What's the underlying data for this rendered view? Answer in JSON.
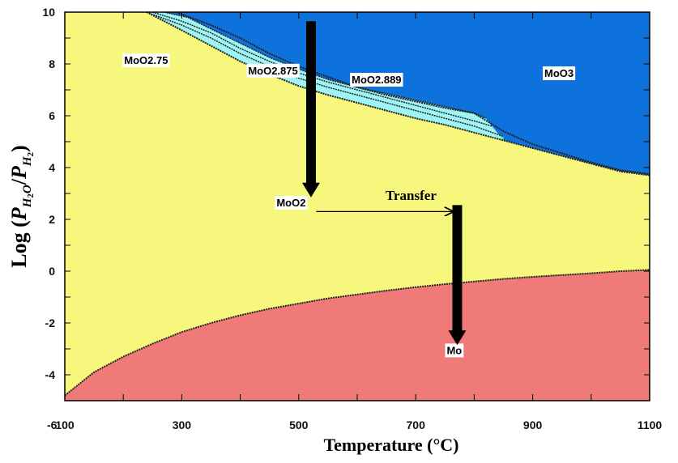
{
  "chart_data": {
    "type": "area",
    "title": "",
    "xlabel": "Temperature (°C)",
    "ylabel_prefix": "Log (",
    "ylabel_num_sub": "H",
    "ylabel_num_sub2": "2",
    "ylabel_num_sub3": "O",
    "ylabel_den_sub": "H",
    "ylabel_den_sub2": "2",
    "ylabel_suffix": ")",
    "ylabel_p": "P",
    "ylabel_slash": "/",
    "xlim": [
      100,
      1100
    ],
    "ylim": [
      -5,
      10
    ],
    "x_ticks": [
      {
        "value": 100,
        "label": "100"
      },
      {
        "value": 300,
        "label": "300"
      },
      {
        "value": 500,
        "label": "500"
      },
      {
        "value": 700,
        "label": "700"
      },
      {
        "value": 900,
        "label": "900"
      },
      {
        "value": 1100,
        "label": "1100"
      }
    ],
    "y_ticks": [
      {
        "value": 10,
        "label": "10"
      },
      {
        "value": 8,
        "label": "8"
      },
      {
        "value": 6,
        "label": "6"
      },
      {
        "value": 4,
        "label": "4"
      },
      {
        "value": 2,
        "label": "2"
      },
      {
        "value": 0,
        "label": "0"
      },
      {
        "value": -2,
        "label": "-2"
      },
      {
        "value": -4,
        "label": "-4"
      }
    ],
    "corner_label": "-6",
    "boundaries": {
      "mo_moo2": [
        [
          100,
          -4.8
        ],
        [
          150,
          -3.9
        ],
        [
          200,
          -3.3
        ],
        [
          250,
          -2.8
        ],
        [
          300,
          -2.35
        ],
        [
          350,
          -2.0
        ],
        [
          400,
          -1.7
        ],
        [
          450,
          -1.45
        ],
        [
          500,
          -1.25
        ],
        [
          550,
          -1.05
        ],
        [
          600,
          -0.9
        ],
        [
          650,
          -0.75
        ],
        [
          700,
          -0.62
        ],
        [
          750,
          -0.5
        ],
        [
          800,
          -0.4
        ],
        [
          850,
          -0.3
        ],
        [
          900,
          -0.22
        ],
        [
          950,
          -0.15
        ],
        [
          1000,
          -0.08
        ],
        [
          1050,
          0.0
        ],
        [
          1100,
          0.05
        ]
      ],
      "moo2_upper": [
        [
          100,
          10
        ],
        [
          240,
          10
        ],
        [
          300,
          9.3
        ],
        [
          350,
          8.7
        ],
        [
          400,
          8.1
        ],
        [
          450,
          7.6
        ],
        [
          500,
          7.15
        ],
        [
          550,
          6.8
        ],
        [
          600,
          6.5
        ],
        [
          650,
          6.2
        ],
        [
          700,
          5.9
        ],
        [
          750,
          5.65
        ],
        [
          800,
          5.35
        ],
        [
          850,
          5.05
        ],
        [
          900,
          4.75
        ],
        [
          950,
          4.45
        ],
        [
          1000,
          4.15
        ],
        [
          1050,
          3.85
        ],
        [
          1100,
          3.7
        ]
      ],
      "moo3_lower": [
        [
          290,
          10
        ],
        [
          350,
          9.5
        ],
        [
          400,
          9.0
        ],
        [
          450,
          8.4
        ],
        [
          500,
          7.9
        ],
        [
          550,
          7.5
        ],
        [
          600,
          7.1
        ],
        [
          650,
          6.8
        ],
        [
          700,
          6.55
        ],
        [
          750,
          6.3
        ],
        [
          800,
          6.1
        ],
        [
          850,
          5.4
        ],
        [
          900,
          4.9
        ],
        [
          950,
          4.55
        ],
        [
          1000,
          4.2
        ],
        [
          1050,
          3.9
        ],
        [
          1100,
          3.75
        ]
      ],
      "band_moo275_upper": [
        [
          240,
          10
        ],
        [
          300,
          9.5
        ],
        [
          350,
          9.0
        ],
        [
          400,
          8.4
        ],
        [
          450,
          7.9
        ],
        [
          500,
          7.45
        ],
        [
          550,
          7.1
        ],
        [
          600,
          6.8
        ],
        [
          650,
          6.5
        ],
        [
          700,
          6.2
        ],
        [
          750,
          5.9
        ],
        [
          800,
          5.6
        ],
        [
          850,
          5.2
        ]
      ],
      "band_moo2875_upper": [
        [
          250,
          10
        ],
        [
          300,
          9.65
        ],
        [
          350,
          9.2
        ],
        [
          400,
          8.6
        ],
        [
          450,
          8.1
        ],
        [
          500,
          7.65
        ],
        [
          550,
          7.3
        ],
        [
          600,
          7.0
        ],
        [
          650,
          6.7
        ],
        [
          700,
          6.4
        ],
        [
          750,
          6.1
        ],
        [
          800,
          5.8
        ],
        [
          830,
          5.6
        ]
      ],
      "band_moo2889_upper": [
        [
          270,
          10
        ],
        [
          310,
          9.8
        ],
        [
          350,
          9.35
        ],
        [
          400,
          8.8
        ],
        [
          450,
          8.25
        ],
        [
          500,
          7.8
        ],
        [
          550,
          7.4
        ],
        [
          600,
          7.1
        ],
        [
          650,
          6.85
        ],
        [
          700,
          6.6
        ],
        [
          750,
          6.35
        ],
        [
          800,
          6.1
        ],
        [
          820,
          5.9
        ]
      ]
    },
    "regions": [
      {
        "name": "Mo",
        "label": "Mo",
        "color": "#f07a78",
        "label_at": [
          766,
          -3.2
        ]
      },
      {
        "name": "MoO2",
        "label": "MoO2",
        "color": "#f7f77d",
        "label_at": [
          487,
          2.5
        ]
      },
      {
        "name": "MoO3",
        "label": "MoO3",
        "color": "#0e72dc",
        "label_at": [
          945,
          7.5
        ]
      },
      {
        "name": "MoO2.75",
        "label": "MoO2.75",
        "color": "#63ee74",
        "label_at": [
          239,
          8.0
        ]
      },
      {
        "name": "MoO2.875",
        "label": "MoO2.875",
        "color": "#2aa54a",
        "label_at": [
          456,
          7.6
        ]
      },
      {
        "name": "MoO2.889",
        "label": "MoO2.889",
        "color": "#9ff5f5",
        "label_at": [
          633,
          7.25
        ]
      }
    ],
    "annotations": {
      "transfer_label": "Transfer",
      "arrow_down_1": {
        "x": 521,
        "y_from": 9.65,
        "y_to": 2.85
      },
      "arrow_down_2": {
        "x": 771,
        "y_from": 2.55,
        "y_to": -2.85
      },
      "transfer_arrow": {
        "y": 2.3,
        "x_from": 530,
        "x_to": 765
      },
      "transfer_label_at": [
        692,
        2.75
      ]
    }
  }
}
